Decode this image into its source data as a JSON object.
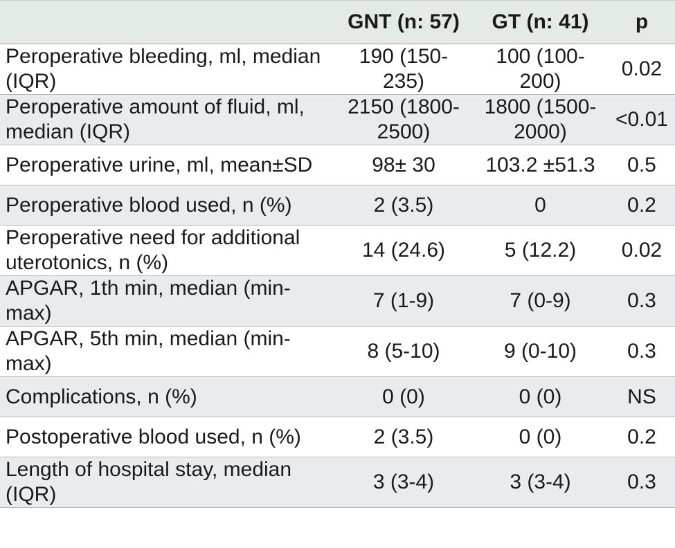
{
  "table": {
    "headers": [
      "",
      "GNT (n: 57)",
      "GT (n: 41)",
      "p"
    ],
    "rows": [
      {
        "label": "Peroperative bleeding, ml, median (IQR)",
        "gnt": "190 (150-235)",
        "gt": "100 (100-200)",
        "p": "0.02"
      },
      {
        "label": "Peroperative amount of fluid, ml, median (IQR)",
        "gnt": "2150 (1800-2500)",
        "gt": "1800 (1500-2000)",
        "p": "<0.01"
      },
      {
        "label": "Peroperative urine, ml, mean±SD",
        "gnt": "98± 30",
        "gt": "103.2 ±51.3",
        "p": "0.5"
      },
      {
        "label": "Peroperative blood used, n (%)",
        "gnt": "2 (3.5)",
        "gt": "0",
        "p": "0.2"
      },
      {
        "label": "Peroperative need for additional uterotonics, n (%)",
        "gnt": "14 (24.6)",
        "gt": "5 (12.2)",
        "p": "0.02"
      },
      {
        "label": "APGAR, 1th min, median (min-max)",
        "gnt": "7 (1-9)",
        "gt": "7 (0-9)",
        "p": "0.3"
      },
      {
        "label": "APGAR, 5th min, median (min-max)",
        "gnt": "8 (5-10)",
        "gt": "9 (0-10)",
        "p": "0.3"
      },
      {
        "label": "Complications, n (%)",
        "gnt": "0 (0)",
        "gt": "0 (0)",
        "p": "NS"
      },
      {
        "label": "Postoperative blood used, n (%)",
        "gnt": "2 (3.5)",
        "gt": "0 (0)",
        "p": "0.2"
      },
      {
        "label": "Length of hospital stay, median (IQR)",
        "gnt": "3 (3-4)",
        "gt": "3 (3-4)",
        "p": "0.3"
      }
    ]
  }
}
